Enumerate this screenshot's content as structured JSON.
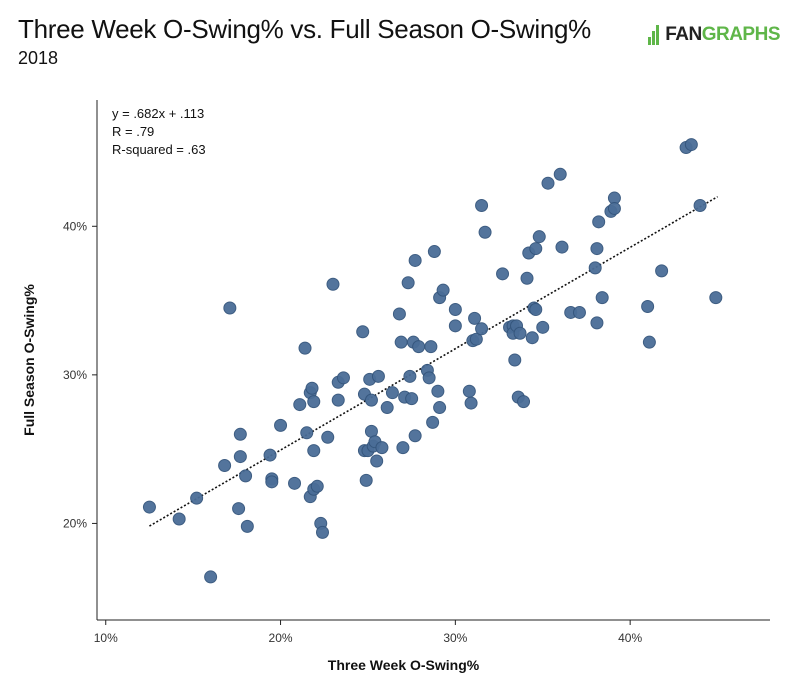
{
  "header": {
    "title": "Three Week O-Swing% vs. Full Season O-Swing%",
    "subtitle": "2018",
    "logo_text_a": "FAN",
    "logo_text_b": "GRAPHS",
    "brand_color": "#5fb649"
  },
  "chart_data": {
    "type": "scatter",
    "title": "Three Week O-Swing% vs. Full Season O-Swing%",
    "subtitle": "2018",
    "xlabel": "Three Week O-Swing%",
    "ylabel": "Full Season O-Swing%",
    "xlim": [
      0.095,
      0.48
    ],
    "ylim": [
      0.135,
      0.485
    ],
    "x_ticks": [
      {
        "v": 0.1,
        "label": "10%"
      },
      {
        "v": 0.2,
        "label": "20%"
      },
      {
        "v": 0.3,
        "label": "30%"
      },
      {
        "v": 0.4,
        "label": "40%"
      }
    ],
    "y_ticks": [
      {
        "v": 0.2,
        "label": "20%"
      },
      {
        "v": 0.3,
        "label": "30%"
      },
      {
        "v": 0.4,
        "label": "40%"
      }
    ],
    "annotations": [
      "y = .682x + .113",
      "R = .79",
      "R-squared = .63"
    ],
    "trendline": {
      "slope": 0.682,
      "intercept": 0.113,
      "x_range": [
        0.125,
        0.45
      ]
    },
    "point_color": "#4a6d97",
    "grid": false,
    "points": [
      [
        0.125,
        0.211
      ],
      [
        0.142,
        0.203
      ],
      [
        0.152,
        0.217
      ],
      [
        0.16,
        0.164
      ],
      [
        0.168,
        0.239
      ],
      [
        0.171,
        0.345
      ],
      [
        0.176,
        0.21
      ],
      [
        0.177,
        0.26
      ],
      [
        0.177,
        0.245
      ],
      [
        0.18,
        0.232
      ],
      [
        0.181,
        0.198
      ],
      [
        0.194,
        0.246
      ],
      [
        0.195,
        0.23
      ],
      [
        0.195,
        0.228
      ],
      [
        0.2,
        0.266
      ],
      [
        0.208,
        0.227
      ],
      [
        0.211,
        0.28
      ],
      [
        0.214,
        0.318
      ],
      [
        0.215,
        0.261
      ],
      [
        0.217,
        0.218
      ],
      [
        0.217,
        0.288
      ],
      [
        0.218,
        0.291
      ],
      [
        0.219,
        0.282
      ],
      [
        0.219,
        0.249
      ],
      [
        0.219,
        0.223
      ],
      [
        0.221,
        0.225
      ],
      [
        0.223,
        0.2
      ],
      [
        0.224,
        0.194
      ],
      [
        0.227,
        0.258
      ],
      [
        0.23,
        0.361
      ],
      [
        0.233,
        0.283
      ],
      [
        0.233,
        0.295
      ],
      [
        0.236,
        0.298
      ],
      [
        0.247,
        0.329
      ],
      [
        0.248,
        0.287
      ],
      [
        0.248,
        0.249
      ],
      [
        0.249,
        0.229
      ],
      [
        0.25,
        0.249
      ],
      [
        0.251,
        0.297
      ],
      [
        0.252,
        0.262
      ],
      [
        0.252,
        0.283
      ],
      [
        0.253,
        0.252
      ],
      [
        0.254,
        0.255
      ],
      [
        0.255,
        0.242
      ],
      [
        0.256,
        0.299
      ],
      [
        0.258,
        0.251
      ],
      [
        0.261,
        0.278
      ],
      [
        0.264,
        0.288
      ],
      [
        0.268,
        0.341
      ],
      [
        0.269,
        0.322
      ],
      [
        0.27,
        0.251
      ],
      [
        0.271,
        0.285
      ],
      [
        0.273,
        0.362
      ],
      [
        0.274,
        0.299
      ],
      [
        0.275,
        0.284
      ],
      [
        0.276,
        0.322
      ],
      [
        0.277,
        0.259
      ],
      [
        0.277,
        0.377
      ],
      [
        0.279,
        0.319
      ],
      [
        0.284,
        0.303
      ],
      [
        0.285,
        0.298
      ],
      [
        0.286,
        0.319
      ],
      [
        0.287,
        0.268
      ],
      [
        0.288,
        0.383
      ],
      [
        0.29,
        0.289
      ],
      [
        0.291,
        0.352
      ],
      [
        0.291,
        0.278
      ],
      [
        0.293,
        0.357
      ],
      [
        0.3,
        0.344
      ],
      [
        0.3,
        0.333
      ],
      [
        0.308,
        0.289
      ],
      [
        0.309,
        0.281
      ],
      [
        0.31,
        0.323
      ],
      [
        0.311,
        0.338
      ],
      [
        0.312,
        0.324
      ],
      [
        0.315,
        0.331
      ],
      [
        0.315,
        0.414
      ],
      [
        0.317,
        0.396
      ],
      [
        0.327,
        0.368
      ],
      [
        0.331,
        0.332
      ],
      [
        0.333,
        0.333
      ],
      [
        0.333,
        0.328
      ],
      [
        0.334,
        0.31
      ],
      [
        0.335,
        0.333
      ],
      [
        0.336,
        0.285
      ],
      [
        0.337,
        0.328
      ],
      [
        0.339,
        0.282
      ],
      [
        0.341,
        0.365
      ],
      [
        0.342,
        0.382
      ],
      [
        0.344,
        0.325
      ],
      [
        0.345,
        0.345
      ],
      [
        0.346,
        0.385
      ],
      [
        0.346,
        0.344
      ],
      [
        0.348,
        0.393
      ],
      [
        0.35,
        0.332
      ],
      [
        0.353,
        0.429
      ],
      [
        0.36,
        0.435
      ],
      [
        0.361,
        0.386
      ],
      [
        0.366,
        0.342
      ],
      [
        0.371,
        0.342
      ],
      [
        0.38,
        0.372
      ],
      [
        0.381,
        0.335
      ],
      [
        0.381,
        0.385
      ],
      [
        0.382,
        0.403
      ],
      [
        0.384,
        0.352
      ],
      [
        0.389,
        0.41
      ],
      [
        0.391,
        0.419
      ],
      [
        0.391,
        0.412
      ],
      [
        0.41,
        0.346
      ],
      [
        0.411,
        0.322
      ],
      [
        0.418,
        0.37
      ],
      [
        0.432,
        0.453
      ],
      [
        0.435,
        0.455
      ],
      [
        0.44,
        0.414
      ],
      [
        0.449,
        0.352
      ]
    ]
  }
}
